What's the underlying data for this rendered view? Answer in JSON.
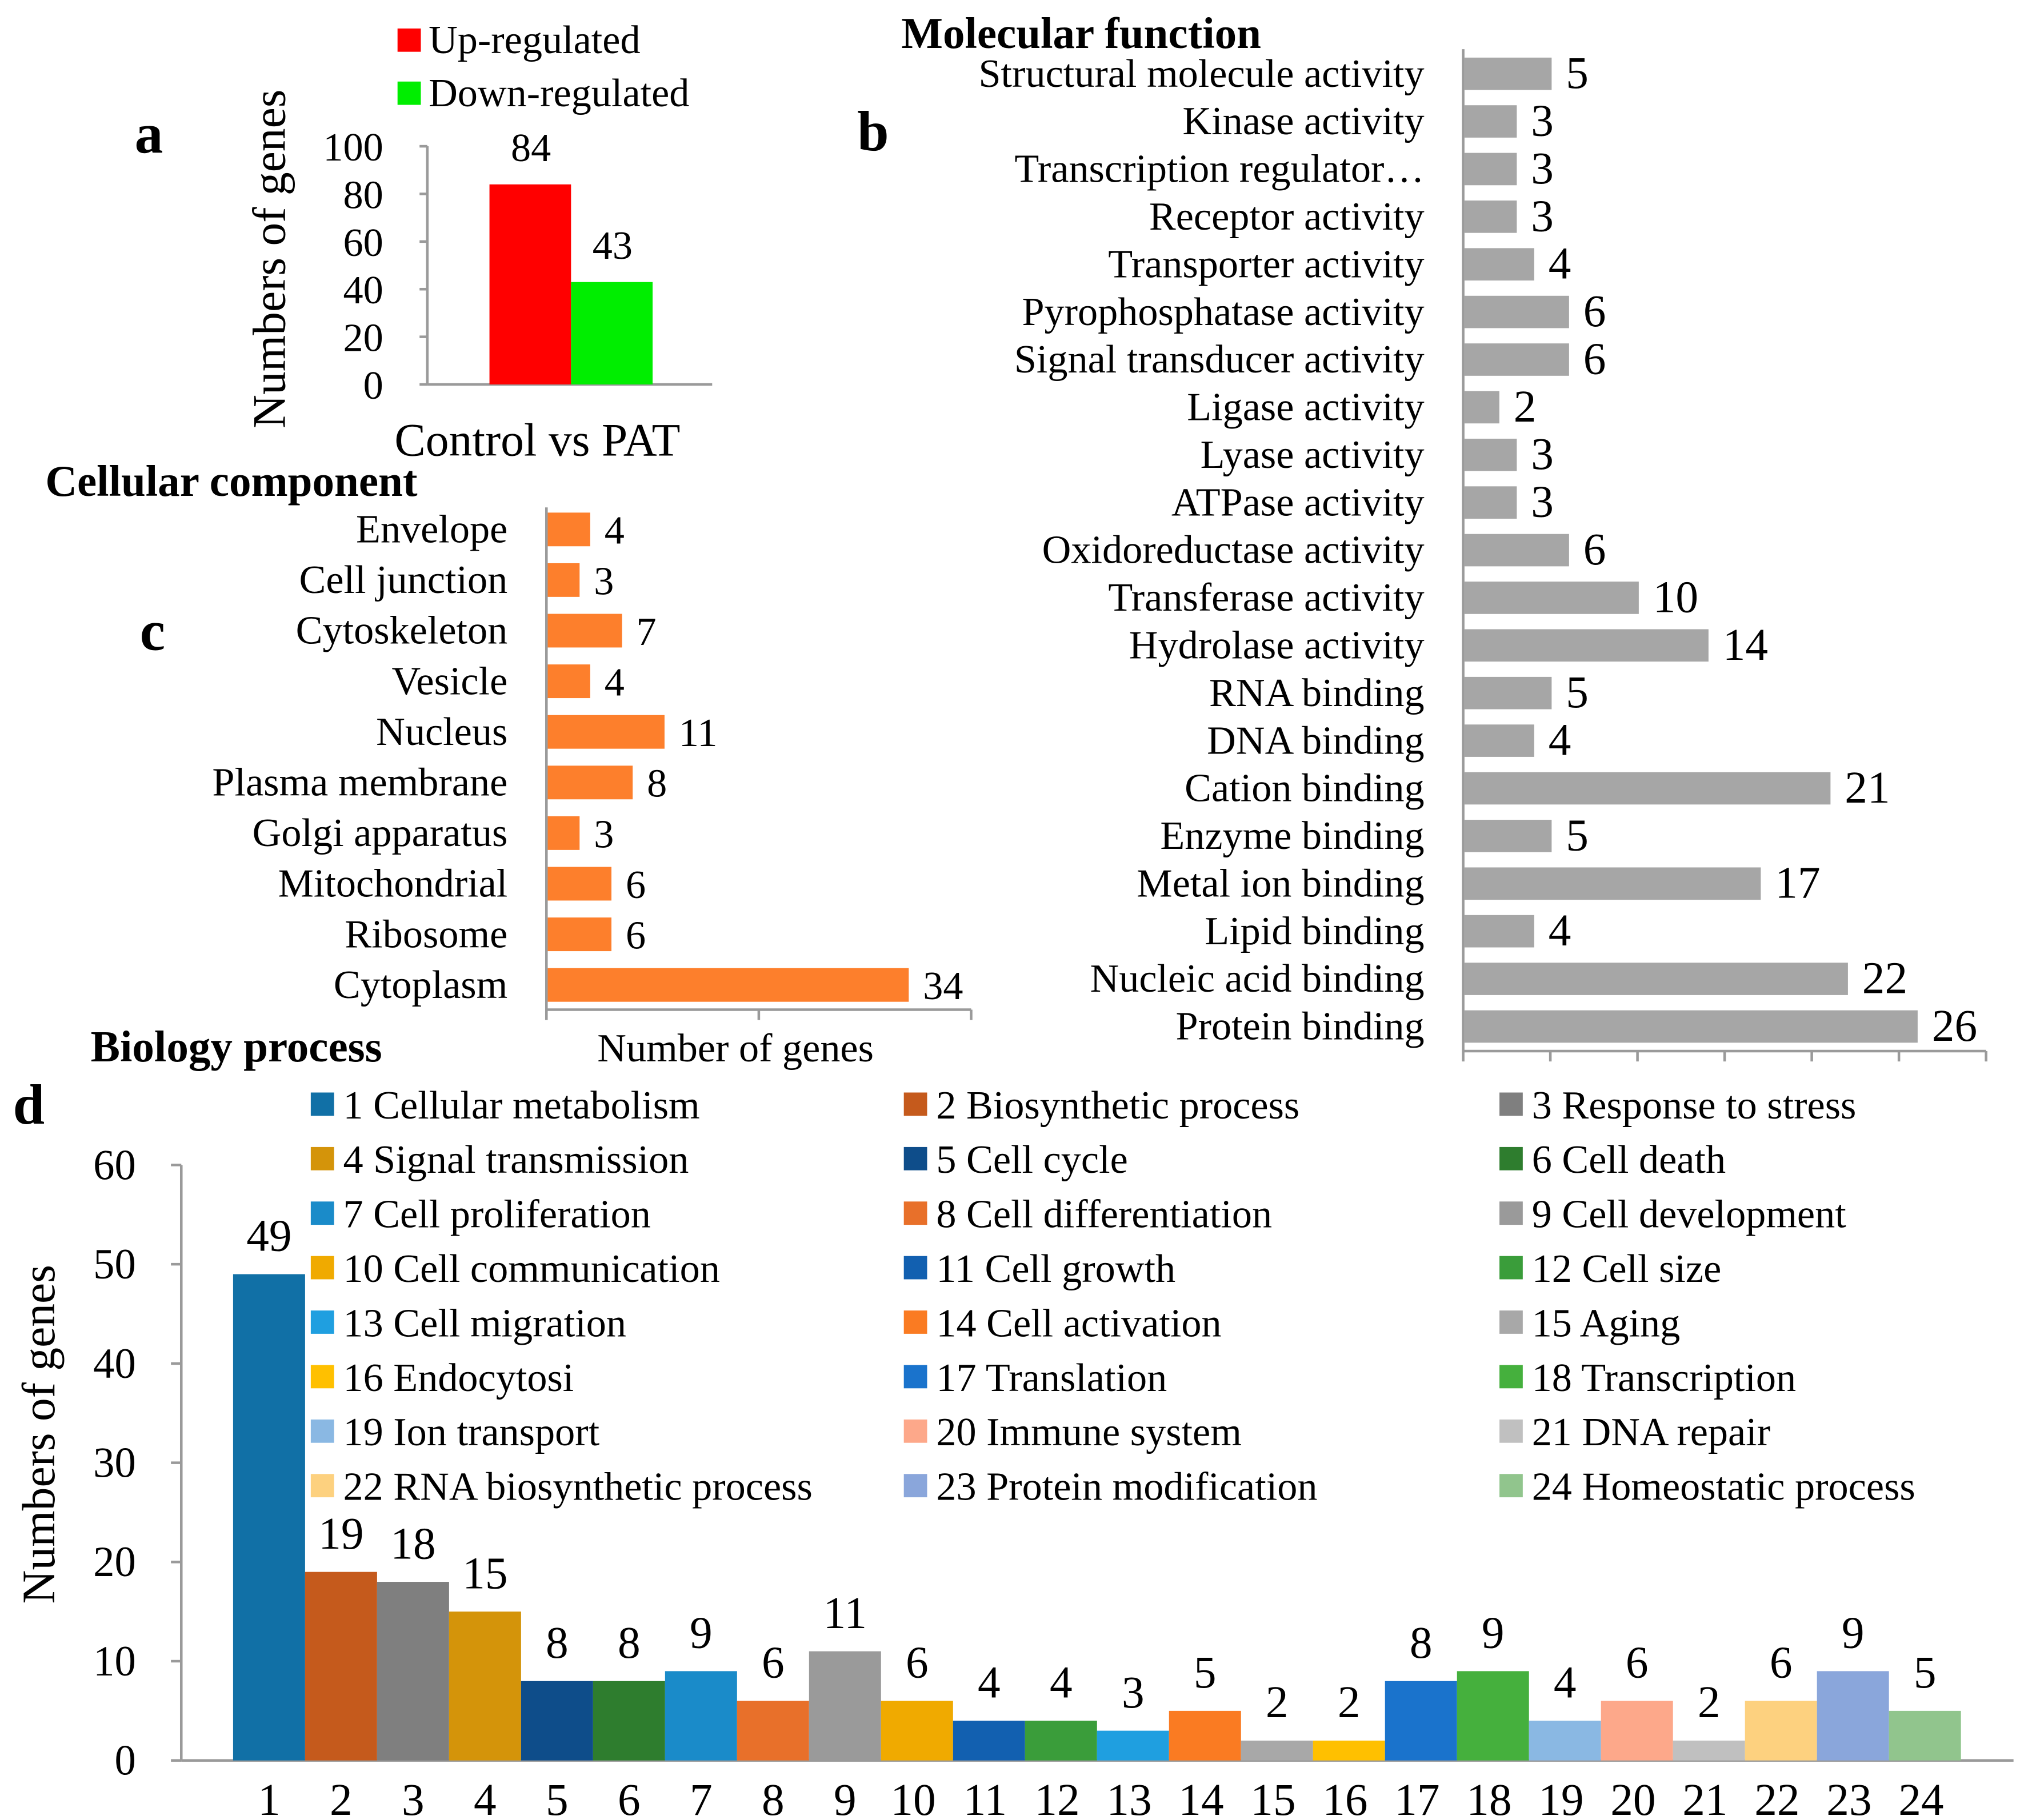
{
  "panel_labels": {
    "a": "a",
    "b": "b",
    "c": "c",
    "d": "d"
  },
  "chart_data": [
    {
      "id": "a",
      "type": "bar",
      "title": "",
      "categories": [
        "Control vs PAT"
      ],
      "series": [
        {
          "name": "Up-regulated",
          "values": [
            84
          ],
          "color": "#ff0000"
        },
        {
          "name": "Down-regulated",
          "values": [
            43
          ],
          "color": "#00ee00"
        }
      ],
      "xlabel": "Control vs PAT",
      "ylabel": "Numbers of genes",
      "ylim": [
        0,
        100
      ],
      "yticks": [
        "0",
        "20",
        "40",
        "60",
        "80",
        "100"
      ],
      "legend": "top"
    },
    {
      "id": "b",
      "type": "bar",
      "orientation": "horizontal",
      "title": "Molecular function",
      "categories": [
        "Structural molecule activity",
        "Kinase activity",
        "Transcription regulator…",
        "Receptor activity",
        "Transporter activity",
        "Pyrophosphatase activity",
        "Signal transducer activity",
        "Ligase activity",
        "Lyase activity",
        "ATPase activity",
        "Oxidoreductase activity",
        "Transferase activity",
        "Hydrolase activity",
        "RNA binding",
        "DNA binding",
        "Cation binding",
        "Enzyme binding",
        "Metal ion binding",
        "Lipid binding",
        "Nucleic acid binding",
        "Protein binding"
      ],
      "values": [
        5,
        3,
        3,
        3,
        4,
        6,
        6,
        2,
        3,
        3,
        6,
        10,
        14,
        5,
        4,
        21,
        5,
        17,
        4,
        22,
        26
      ],
      "color": "#a6a6a6",
      "xlim": [
        0,
        30
      ]
    },
    {
      "id": "c",
      "type": "bar",
      "orientation": "horizontal",
      "title": "Cellular component",
      "categories": [
        "Envelope",
        "Cell junction",
        "Cytoskeleton",
        "Vesicle",
        "Nucleus",
        "Plasma membrane",
        "Golgi apparatus",
        "Mitochondrial",
        "Ribosome",
        "Cytoplasm"
      ],
      "values": [
        4,
        3,
        7,
        4,
        11,
        8,
        3,
        6,
        6,
        34
      ],
      "color": "#fd7f2c",
      "xlabel": "Number of genes",
      "xlim": [
        0,
        40
      ]
    },
    {
      "id": "d",
      "type": "bar",
      "title": "Biology process",
      "ylabel": "Numbers of genes",
      "ylim": [
        0,
        60
      ],
      "yticks": [
        "0",
        "10",
        "20",
        "30",
        "40",
        "50",
        "60"
      ],
      "categories": [
        "1",
        "2",
        "3",
        "4",
        "5",
        "6",
        "7",
        "8",
        "9",
        "10",
        "11",
        "12",
        "13",
        "14",
        "15",
        "16",
        "17",
        "18",
        "19",
        "20",
        "21",
        "22",
        "23",
        "24"
      ],
      "legend_labels": [
        "1 Cellular metabolism",
        "2 Biosynthetic process",
        "3 Response to stress",
        "4 Signal transmission",
        "5 Cell cycle",
        "6 Cell death",
        "7 Cell proliferation",
        "8 Cell differentiation",
        "9 Cell development",
        "10 Cell communication",
        "11 Cell growth",
        "12 Cell size",
        "13 Cell migration",
        "14 Cell activation",
        "15 Aging",
        "16 Endocytosi",
        "17 Translation",
        "18 Transcription",
        "19 Ion transport",
        "20 Immune system",
        "21 DNA repair",
        "22 RNA biosynthetic process",
        "23 Protein modification",
        "24 Homeostatic process"
      ],
      "values": [
        49,
        19,
        18,
        15,
        8,
        8,
        9,
        6,
        11,
        6,
        4,
        4,
        3,
        5,
        2,
        2,
        8,
        9,
        4,
        6,
        2,
        6,
        9,
        5
      ],
      "colors": [
        "#1170a6",
        "#c55a1c",
        "#7f7f7f",
        "#d4940a",
        "#0e4d8a",
        "#2e7d2e",
        "#1a8bc9",
        "#e8702a",
        "#9a9a9a",
        "#f0aa00",
        "#1260b0",
        "#3a9d3a",
        "#1f9fe0",
        "#fa7b22",
        "#a8a8a8",
        "#ffc000",
        "#1a73cc",
        "#45b03d",
        "#8ab8e3",
        "#fda88a",
        "#c0c0c0",
        "#fdd17f",
        "#8aa6db",
        "#91c58d"
      ],
      "legend": "top"
    }
  ]
}
